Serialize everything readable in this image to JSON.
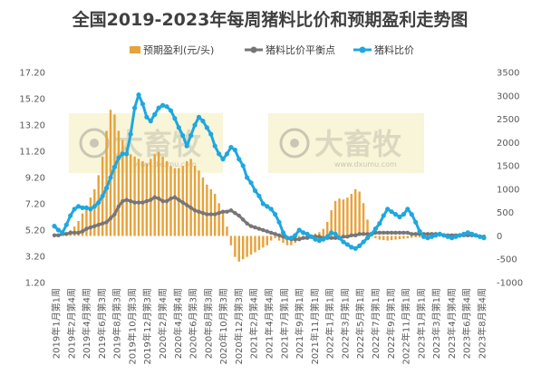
{
  "chart_data": {
    "type": "bar+line",
    "title": "全国2019-2023年每周猪料比价和预期盈利走势图",
    "legend": [
      "预期盈利(元/头)",
      "猪料比价平衡点",
      "猪料比价"
    ],
    "legend_position": "top",
    "grid": false,
    "y_left": {
      "ticks": [
        "1.20",
        "3.20",
        "5.20",
        "7.20",
        "9.20",
        "11.20",
        "13.20",
        "15.20",
        "17.20"
      ],
      "range": [
        1.2,
        17.2
      ]
    },
    "y_right": {
      "ticks": [
        "-1000",
        "-500",
        "0",
        "500",
        "1000",
        "1500",
        "2000",
        "2500",
        "3000",
        "3500"
      ],
      "range": [
        -1000,
        3500
      ]
    },
    "x_labels": [
      "2019年1月第1周",
      "2019年2月第4周",
      "2019年4月第4周",
      "2019年6月第3周",
      "2019年8月第3周",
      "2019年10月第3周",
      "2019年12月第3周",
      "2020年2月第4周",
      "2020年4月第4周",
      "2020年6月第3周",
      "2020年8月第3周",
      "2020年10月第3周",
      "2020年12月第3周",
      "2021年2月第4周",
      "2021年4月第4周",
      "2021年7月第1周",
      "2021年9月第1周",
      "2021年11月第1周",
      "2022年1月第1周",
      "2022年3月第1周",
      "2022年5月第1周",
      "2022年7月第1周",
      "2022年9月第1周",
      "2022年11月第1周",
      "2023年1月第1周",
      "2023年3月第1周",
      "2023年4月第4周",
      "2023年6月第4周",
      "2023年8月第4周"
    ],
    "colors": {
      "profit": "#E8A23A",
      "breakeven": "#767676",
      "ratio": "#1FA7DF"
    },
    "series_profit_yuan_per_head": [
      20,
      40,
      60,
      80,
      120,
      200,
      320,
      480,
      650,
      820,
      1000,
      1300,
      1700,
      2250,
      2700,
      2600,
      2250,
      2050,
      1900,
      1750,
      1700,
      1650,
      1600,
      1550,
      1650,
      1750,
      1800,
      1700,
      1600,
      1500,
      1450,
      1450,
      1500,
      1600,
      1650,
      1500,
      1400,
      1250,
      1100,
      1000,
      900,
      700,
      500,
      200,
      -200,
      -450,
      -550,
      -500,
      -450,
      -400,
      -350,
      -300,
      -250,
      -200,
      -100,
      -50,
      -100,
      -150,
      -200,
      -200,
      -150,
      -100,
      -50,
      0,
      30,
      50,
      80,
      150,
      300,
      550,
      750,
      800,
      780,
      820,
      900,
      1000,
      950,
      700,
      350,
      50,
      -50,
      -80,
      -90,
      -100,
      -90,
      -80,
      -70,
      -60,
      -50,
      -40,
      -30,
      -30,
      -40,
      -50,
      -40,
      -30,
      -20,
      -10,
      0,
      10,
      20,
      30,
      40,
      50,
      30,
      20,
      10,
      0
    ],
    "series_breakeven_ratio": [
      4.8,
      4.8,
      4.9,
      4.9,
      5.0,
      5.0,
      5.0,
      5.1,
      5.3,
      5.4,
      5.5,
      5.6,
      5.7,
      5.8,
      6.1,
      6.4,
      7.0,
      7.4,
      7.5,
      7.4,
      7.3,
      7.3,
      7.3,
      7.4,
      7.5,
      7.7,
      7.6,
      7.4,
      7.4,
      7.6,
      7.7,
      7.5,
      7.3,
      7.1,
      6.9,
      6.7,
      6.6,
      6.5,
      6.4,
      6.4,
      6.4,
      6.5,
      6.6,
      6.6,
      6.7,
      6.5,
      6.3,
      6.0,
      5.7,
      5.5,
      5.4,
      5.3,
      5.2,
      5.1,
      5.0,
      4.9,
      4.8,
      4.7,
      4.6,
      4.5,
      4.5,
      4.5,
      4.6,
      4.6,
      4.7,
      4.7,
      4.7,
      4.6,
      4.6,
      4.6,
      4.6,
      4.6,
      4.7,
      4.7,
      4.8,
      4.8,
      4.9,
      4.9,
      4.9,
      4.9,
      5.0,
      5.0,
      5.0,
      5.0,
      5.0,
      5.0,
      5.0,
      5.0,
      5.0,
      4.9,
      4.9,
      4.9,
      4.9,
      4.9,
      4.9,
      4.9,
      4.9,
      4.8,
      4.8,
      4.8,
      4.8,
      4.8,
      4.8,
      4.8,
      4.8,
      4.8,
      4.7,
      4.7
    ],
    "series_pig_feed_ratio": [
      5.5,
      5.2,
      5.0,
      5.6,
      6.3,
      6.8,
      7.0,
      6.9,
      6.9,
      6.8,
      7.0,
      7.3,
      7.8,
      8.4,
      9.2,
      10.0,
      10.7,
      11.0,
      11.0,
      12.5,
      14.5,
      15.5,
      14.8,
      13.8,
      13.5,
      14.0,
      14.5,
      14.7,
      14.6,
      14.3,
      13.7,
      13.0,
      12.4,
      11.6,
      12.4,
      13.2,
      13.8,
      13.5,
      13.0,
      12.5,
      11.6,
      11.0,
      10.6,
      11.0,
      11.5,
      11.3,
      10.6,
      10.1,
      9.2,
      8.8,
      8.2,
      7.8,
      7.2,
      7.0,
      6.8,
      6.4,
      5.8,
      5.0,
      4.6,
      4.6,
      4.8,
      5.2,
      5.0,
      4.9,
      4.7,
      4.5,
      4.4,
      4.5,
      4.7,
      5.0,
      4.9,
      4.6,
      4.3,
      4.1,
      3.9,
      3.8,
      4.0,
      4.3,
      4.6,
      4.9,
      5.3,
      5.7,
      6.3,
      6.8,
      6.6,
      6.4,
      6.2,
      6.4,
      6.8,
      6.4,
      5.8,
      5.1,
      4.7,
      4.6,
      4.7,
      4.8,
      4.9,
      4.8,
      4.7,
      4.6,
      4.7,
      4.8,
      4.9,
      5.0,
      4.9,
      4.8,
      4.7,
      4.6
    ]
  },
  "watermark": {
    "brand_cn": "大畜牧",
    "url": "www.dxumu.com"
  }
}
